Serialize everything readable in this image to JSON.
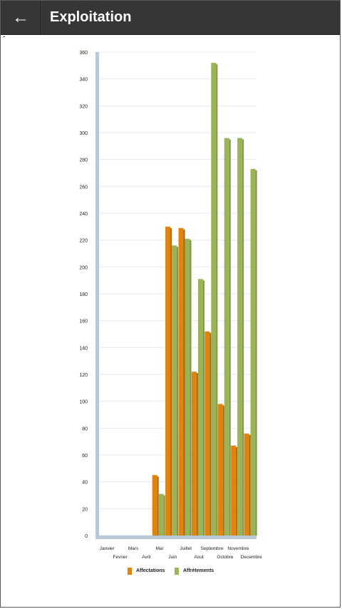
{
  "header": {
    "title": "Exploitation",
    "back_icon": "arrow-left-icon",
    "back_glyph": "←"
  },
  "colors": {
    "appbar": "#363636",
    "affectations": "#e08410",
    "affretements": "#9bb458",
    "axis": "#b8c8d8"
  },
  "chart_data": {
    "type": "bar",
    "title": "",
    "xlabel": "",
    "ylabel": "",
    "ylim": [
      0,
      360
    ],
    "yticks": [
      0,
      20,
      40,
      60,
      80,
      100,
      120,
      140,
      160,
      180,
      200,
      220,
      240,
      260,
      280,
      300,
      320,
      340,
      360
    ],
    "grid": true,
    "legend_position": "bottom",
    "categories": [
      "Janvier",
      "Fevrier",
      "Mars",
      "Avril",
      "Mai",
      "Juin",
      "Juillet",
      "Aout",
      "Septembre",
      "Octobre",
      "Novembre",
      "Decembre"
    ],
    "series": [
      {
        "name": "Affectations",
        "values": [
          0,
          0,
          0,
          0,
          45,
          230,
          229,
          122,
          152,
          98,
          67,
          76
        ]
      },
      {
        "name": "Affrètements",
        "values": [
          0,
          0,
          0,
          0,
          31,
          216,
          221,
          191,
          352,
          296,
          296,
          273
        ]
      }
    ]
  }
}
